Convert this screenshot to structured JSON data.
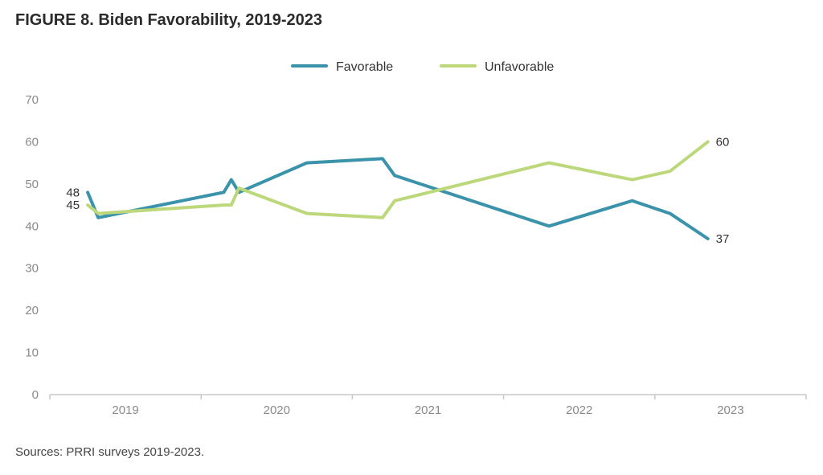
{
  "chart_data": {
    "type": "line",
    "title": "FIGURE 8. Biden Favorability, 2019-2023",
    "source": "Sources: PRRI surveys 2019-2023.",
    "xlabel": "",
    "ylabel": "",
    "ylim": [
      0,
      70
    ],
    "yticks": [
      "0",
      "10",
      "20",
      "30",
      "40",
      "50",
      "60",
      "70"
    ],
    "xlim": [
      2019,
      2024
    ],
    "xticks": [
      "2019",
      "2020",
      "2021",
      "2022",
      "2023"
    ],
    "grid": false,
    "legend_position": "top-center",
    "series": [
      {
        "name": "Favorable",
        "color": "#3a93ab",
        "x": [
          2019.25,
          2019.32,
          2020.15,
          2020.2,
          2020.25,
          2020.7,
          2021.2,
          2021.28,
          2022.3,
          2022.85,
          2023.1,
          2023.35
        ],
        "y": [
          48,
          42,
          48,
          51,
          48,
          55,
          56,
          52,
          40,
          46,
          43,
          37
        ],
        "labels": [
          {
            "index": 0,
            "text": "48"
          },
          {
            "index": 11,
            "text": "37"
          }
        ]
      },
      {
        "name": "Unfavorable",
        "color": "#bcd87a",
        "x": [
          2019.25,
          2019.32,
          2020.15,
          2020.2,
          2020.25,
          2020.7,
          2021.2,
          2021.28,
          2022.3,
          2022.85,
          2023.1,
          2023.35
        ],
        "y": [
          45,
          43,
          45,
          45,
          49,
          43,
          42,
          46,
          55,
          51,
          53,
          60
        ],
        "labels": [
          {
            "index": 0,
            "text": "45"
          },
          {
            "index": 11,
            "text": "60"
          }
        ]
      }
    ]
  }
}
